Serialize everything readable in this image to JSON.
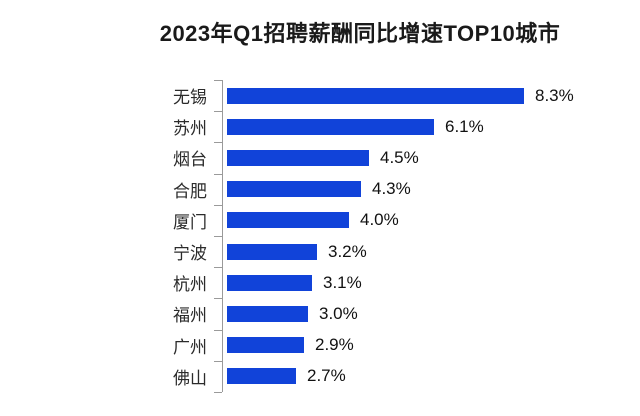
{
  "chart_data": {
    "type": "bar",
    "orientation": "horizontal",
    "title": "2023年Q1招聘薪酬同比增速TOP10城市",
    "categories": [
      "无锡",
      "苏州",
      "烟台",
      "合肥",
      "厦门",
      "宁波",
      "杭州",
      "福州",
      "广州",
      "佛山"
    ],
    "values": [
      8.3,
      6.1,
      4.5,
      4.3,
      4.0,
      3.2,
      3.1,
      3.0,
      2.9,
      2.7
    ],
    "value_labels": [
      "8.3%",
      "6.1%",
      "4.5%",
      "4.3%",
      "4.0%",
      "3.2%",
      "3.1%",
      "3.0%",
      "2.9%",
      "2.7%"
    ],
    "unit": "%",
    "xlim": [
      1.0,
      8.3
    ],
    "grid": false,
    "legend": "none",
    "bar_color": "#1143d9",
    "axis_color": "#9a9a9a",
    "title_color": "#1a1a1a",
    "label_color": "#2b2b2b",
    "value_color": "#111111"
  }
}
